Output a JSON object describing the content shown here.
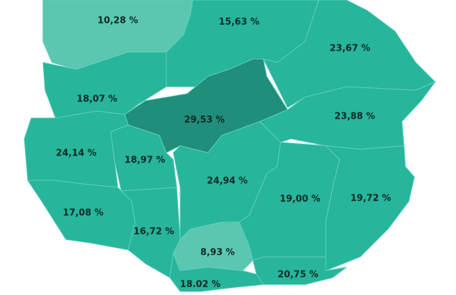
{
  "regions": [
    {
      "label": "10,28 %",
      "color": "#5cc7b0"
    },
    {
      "label": "15,63 %",
      "color": "#27b59c"
    },
    {
      "label": "23,67 %",
      "color": "#27b59c"
    },
    {
      "label": "18,07 %",
      "color": "#27b59c"
    },
    {
      "label": "29,53 %",
      "color": "#218d7b"
    },
    {
      "label": "23,88 %",
      "color": "#27b59c"
    },
    {
      "label": "24,14 %",
      "color": "#27b59c"
    },
    {
      "label": "18,97 %",
      "color": "#27b59c"
    },
    {
      "label": "24,94 %",
      "color": "#27b59c"
    },
    {
      "label": "17,08 %",
      "color": "#27b59c"
    },
    {
      "label": "16,72 %",
      "color": "#27b59c"
    },
    {
      "label": "8,93 %",
      "color": "#5cc7b0"
    },
    {
      "label": "19,00 %",
      "color": "#27b59c"
    },
    {
      "label": "19,72 %",
      "color": "#27b59c"
    },
    {
      "label": "20,75 %",
      "color": "#27b59c"
    },
    {
      "label": "18.02 %",
      "color": "#27b59c"
    }
  ]
}
